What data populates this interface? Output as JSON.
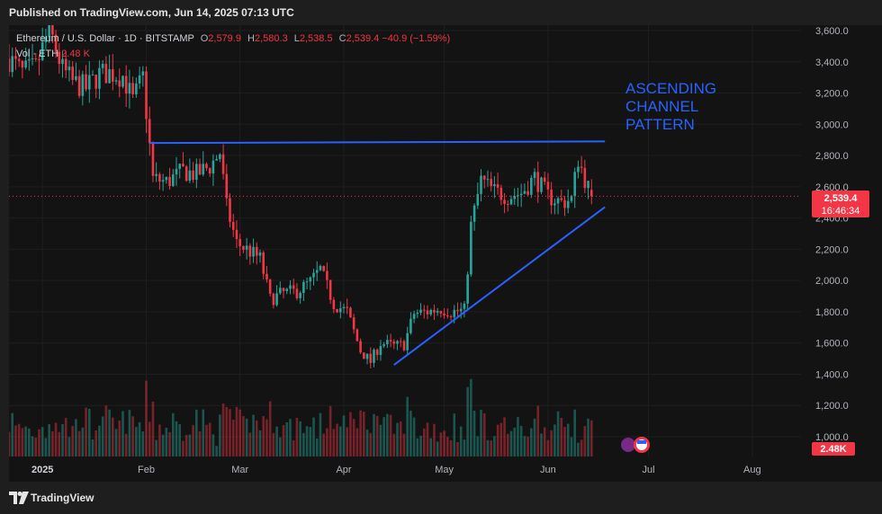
{
  "header": {
    "published": "Published on TradingView.com, Jun 14, 2025 07:13 UTC"
  },
  "legend": {
    "symbol": "Ethereum / U.S. Dollar · 1D · BITSTAMP",
    "o_key": "O",
    "o_val": "2,579.9",
    "h_key": "H",
    "h_val": "2,580.3",
    "l_key": "L",
    "l_val": "2,538.5",
    "c_key": "C",
    "c_val": "2,539.4 −40.9 (−1.59%)",
    "vol_label": "Vol · ETH",
    "vol_val": "2.48 K"
  },
  "footer": {
    "brand": "TradingView"
  },
  "colors": {
    "up": "#26a69a",
    "down": "#f23645",
    "trendline": "#2962ff",
    "annotation": "#2962ff",
    "last_price_bg": "#f23645"
  },
  "chart_data": {
    "type": "candlestick",
    "instrument": "Ethereum / U.S. Dollar",
    "interval": "1D",
    "exchange": "BITSTAMP",
    "y_ticks": [
      "3,600.0",
      "3,400.0",
      "3,200.0",
      "3,000.0",
      "2,800.0",
      "2,600.0",
      "2,400.0",
      "2,200.0",
      "2,000.0",
      "1,800.0",
      "1,600.0",
      "1,400.0",
      "1,200.0",
      "1,000.0"
    ],
    "ylim": [
      900,
      3650
    ],
    "x_ticks": [
      {
        "label": "2025",
        "date": "2025-01-01"
      },
      {
        "label": "Feb",
        "date": "2025-02-01"
      },
      {
        "label": "Mar",
        "date": "2025-03-01"
      },
      {
        "label": "Apr",
        "date": "2025-04-01"
      },
      {
        "label": "May",
        "date": "2025-05-01"
      },
      {
        "label": "Jun",
        "date": "2025-06-01"
      },
      {
        "label": "Jul",
        "date": "2025-07-01"
      },
      {
        "label": "Aug",
        "date": "2025-08-01"
      }
    ],
    "last_price": "2,539.4",
    "countdown": "16:46:34",
    "last_volume": "2.48K",
    "annotation": [
      "ASCENDING",
      "CHANNEL",
      "PATTERN"
    ],
    "resistance_line": {
      "start": {
        "date": "2025-02-02",
        "price": 2880
      },
      "end": {
        "date": "2025-06-18",
        "price": 2890
      }
    },
    "support_line": {
      "start": {
        "date": "2025-04-16",
        "price": 1460
      },
      "end": {
        "date": "2025-06-18",
        "price": 2470
      }
    },
    "closes": [
      {
        "date": "2024-12-22",
        "close": 3420
      },
      {
        "date": "2024-12-26",
        "close": 3330
      },
      {
        "date": "2024-12-30",
        "close": 3360
      },
      {
        "date": "2025-01-03",
        "close": 3610
      },
      {
        "date": "2025-01-07",
        "close": 3350
      },
      {
        "date": "2025-01-10",
        "close": 3270
      },
      {
        "date": "2025-01-14",
        "close": 3230
      },
      {
        "date": "2025-01-18",
        "close": 3320
      },
      {
        "date": "2025-01-21",
        "close": 3330
      },
      {
        "date": "2025-01-25",
        "close": 3310
      },
      {
        "date": "2025-01-28",
        "close": 3150
      },
      {
        "date": "2025-01-31",
        "close": 3300
      },
      {
        "date": "2025-02-02",
        "close": 2860
      },
      {
        "date": "2025-02-03",
        "close": 2650
      },
      {
        "date": "2025-02-07",
        "close": 2630
      },
      {
        "date": "2025-02-12",
        "close": 2700
      },
      {
        "date": "2025-02-16",
        "close": 2680
      },
      {
        "date": "2025-02-20",
        "close": 2730
      },
      {
        "date": "2025-02-23",
        "close": 2820
      },
      {
        "date": "2025-02-25",
        "close": 2470
      },
      {
        "date": "2025-02-28",
        "close": 2240
      },
      {
        "date": "2025-03-03",
        "close": 2200
      },
      {
        "date": "2025-03-07",
        "close": 2140
      },
      {
        "date": "2025-03-10",
        "close": 1880
      },
      {
        "date": "2025-03-14",
        "close": 1920
      },
      {
        "date": "2025-03-18",
        "close": 1930
      },
      {
        "date": "2025-03-22",
        "close": 1990
      },
      {
        "date": "2025-03-25",
        "close": 2070
      },
      {
        "date": "2025-03-29",
        "close": 1850
      },
      {
        "date": "2025-04-02",
        "close": 1800
      },
      {
        "date": "2025-04-06",
        "close": 1550
      },
      {
        "date": "2025-04-09",
        "close": 1480
      },
      {
        "date": "2025-04-12",
        "close": 1600
      },
      {
        "date": "2025-04-16",
        "close": 1580
      },
      {
        "date": "2025-04-19",
        "close": 1590
      },
      {
        "date": "2025-04-22",
        "close": 1790
      },
      {
        "date": "2025-04-26",
        "close": 1800
      },
      {
        "date": "2025-04-30",
        "close": 1820
      },
      {
        "date": "2025-05-03",
        "close": 1800
      },
      {
        "date": "2025-05-07",
        "close": 1810
      },
      {
        "date": "2025-05-09",
        "close": 2350
      },
      {
        "date": "2025-05-12",
        "close": 2640
      },
      {
        "date": "2025-05-16",
        "close": 2570
      },
      {
        "date": "2025-05-20",
        "close": 2540
      },
      {
        "date": "2025-05-24",
        "close": 2560
      },
      {
        "date": "2025-05-28",
        "close": 2660
      },
      {
        "date": "2025-06-01",
        "close": 2540
      },
      {
        "date": "2025-06-05",
        "close": 2500
      },
      {
        "date": "2025-06-08",
        "close": 2520
      },
      {
        "date": "2025-06-10",
        "close": 2780
      },
      {
        "date": "2025-06-12",
        "close": 2650
      },
      {
        "date": "2025-06-14",
        "close": 2539.4
      }
    ]
  }
}
